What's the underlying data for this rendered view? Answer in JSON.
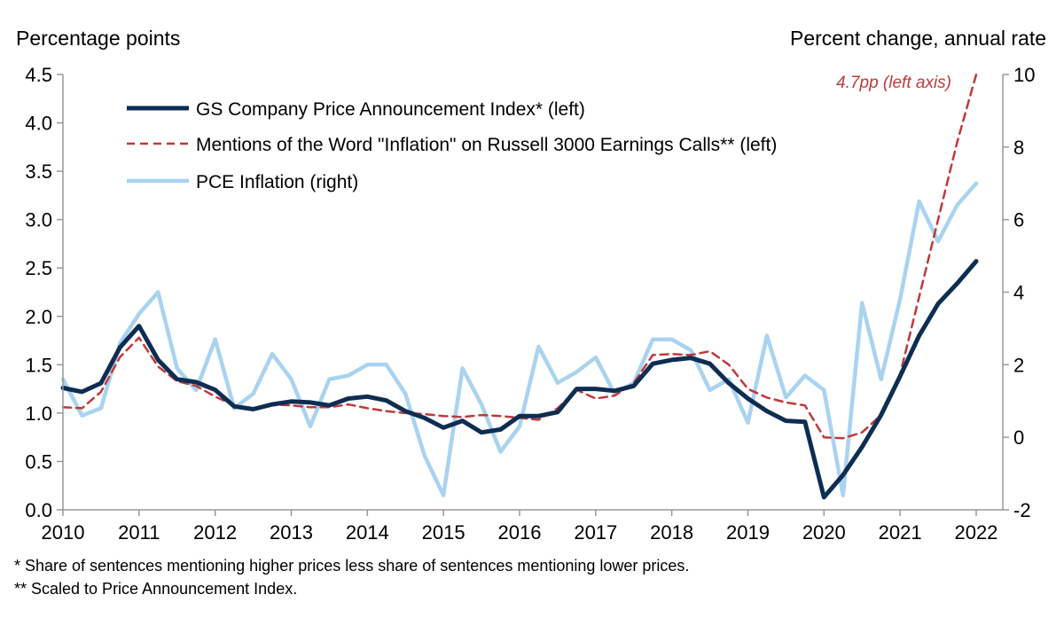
{
  "left_axis_title": "Percentage points",
  "right_axis_title": "Percent change, annual rate",
  "annotation": "4.7pp (left axis)",
  "footnotes": [
    "* Share of sentences mentioning higher prices less share of sentences mentioning lower prices.",
    "** Scaled to Price Announcement Index."
  ],
  "colors": {
    "gs": "#0e2d52",
    "mentions": "#c0393b",
    "pce": "#a9d3ef",
    "axis": "#999999"
  },
  "chart_data": {
    "type": "line",
    "x_ticks": [
      "2010",
      "2011",
      "2012",
      "2013",
      "2014",
      "2015",
      "2016",
      "2017",
      "2018",
      "2019",
      "2020",
      "2021",
      "2022"
    ],
    "xlim": [
      2010,
      2022.35
    ],
    "left_ylim": [
      0,
      4.5
    ],
    "left_yticks": [
      "0.0",
      "0.5",
      "1.0",
      "1.5",
      "2.0",
      "2.5",
      "3.0",
      "3.5",
      "4.0",
      "4.5"
    ],
    "right_ylim": [
      -2,
      10
    ],
    "right_yticks": [
      "-2",
      "0",
      "2",
      "4",
      "6",
      "8",
      "10"
    ],
    "grid": false,
    "legend_position": "top-left",
    "series": [
      {
        "name": "GS Company Price Announcement Index* (left)",
        "axis": "left",
        "style": "solid",
        "x": [
          2010,
          2010.25,
          2010.5,
          2010.75,
          2011,
          2011.25,
          2011.5,
          2011.75,
          2012,
          2012.25,
          2012.5,
          2012.75,
          2013,
          2013.25,
          2013.5,
          2013.75,
          2014,
          2014.25,
          2014.5,
          2014.75,
          2015,
          2015.25,
          2015.5,
          2015.75,
          2016,
          2016.25,
          2016.5,
          2016.75,
          2017,
          2017.25,
          2017.5,
          2017.75,
          2018,
          2018.25,
          2018.5,
          2018.75,
          2019,
          2019.25,
          2019.5,
          2019.75,
          2020,
          2020.25,
          2020.5,
          2020.75,
          2021,
          2021.25,
          2021.5,
          2021.75,
          2022
        ],
        "y": [
          1.26,
          1.22,
          1.31,
          1.68,
          1.9,
          1.55,
          1.35,
          1.32,
          1.24,
          1.07,
          1.04,
          1.09,
          1.12,
          1.11,
          1.08,
          1.15,
          1.17,
          1.13,
          1.02,
          0.95,
          0.85,
          0.92,
          0.8,
          0.83,
          0.97,
          0.97,
          1.01,
          1.25,
          1.25,
          1.23,
          1.28,
          1.51,
          1.55,
          1.57,
          1.51,
          1.31,
          1.15,
          1.02,
          0.92,
          0.91,
          0.13,
          0.36,
          0.65,
          0.98,
          1.38,
          1.8,
          2.13,
          2.34,
          2.57
        ]
      },
      {
        "name": "Mentions of the Word \"Inflation\" on Russell 3000 Earnings Calls** (left)",
        "axis": "left",
        "style": "dashed",
        "x": [
          2010,
          2010.25,
          2010.5,
          2010.75,
          2011,
          2011.25,
          2011.5,
          2011.75,
          2012,
          2012.25,
          2012.5,
          2012.75,
          2013,
          2013.25,
          2013.5,
          2013.75,
          2014,
          2014.25,
          2014.5,
          2014.75,
          2015,
          2015.25,
          2015.5,
          2015.75,
          2016,
          2016.25,
          2016.5,
          2016.75,
          2017,
          2017.25,
          2017.5,
          2017.75,
          2018,
          2018.25,
          2018.5,
          2018.75,
          2019,
          2019.25,
          2019.5,
          2019.75,
          2020,
          2020.25,
          2020.5,
          2020.75,
          2021,
          2021.25,
          2021.5,
          2021.75,
          2022
        ],
        "y": [
          1.06,
          1.05,
          1.22,
          1.58,
          1.78,
          1.48,
          1.33,
          1.28,
          1.17,
          1.08,
          1.05,
          1.09,
          1.08,
          1.06,
          1.06,
          1.09,
          1.05,
          1.02,
          1.0,
          0.99,
          0.97,
          0.96,
          0.98,
          0.97,
          0.95,
          0.93,
          1.05,
          1.24,
          1.15,
          1.18,
          1.31,
          1.6,
          1.61,
          1.6,
          1.64,
          1.5,
          1.25,
          1.16,
          1.11,
          1.08,
          0.75,
          0.74,
          0.8,
          0.98,
          1.4,
          2.2,
          3.0,
          3.8,
          4.5
        ]
      },
      {
        "name": "PCE Inflation (right)",
        "axis": "right",
        "style": "solid",
        "x": [
          2010,
          2010.25,
          2010.5,
          2010.75,
          2011,
          2011.25,
          2011.5,
          2011.75,
          2012,
          2012.25,
          2012.5,
          2012.75,
          2013,
          2013.25,
          2013.5,
          2013.75,
          2014,
          2014.25,
          2014.5,
          2014.75,
          2015,
          2015.25,
          2015.5,
          2015.75,
          2016,
          2016.25,
          2016.5,
          2016.75,
          2017,
          2017.25,
          2017.5,
          2017.75,
          2018,
          2018.25,
          2018.5,
          2018.75,
          2019,
          2019.25,
          2019.5,
          2019.75,
          2020,
          2020.25,
          2020.5,
          2020.75,
          2021,
          2021.25,
          2021.5,
          2021.75,
          2022
        ],
        "y": [
          1.6,
          0.6,
          0.8,
          2.6,
          3.4,
          4.0,
          1.9,
          1.3,
          2.7,
          0.8,
          1.2,
          2.3,
          1.6,
          0.3,
          1.6,
          1.7,
          2.0,
          2.0,
          1.2,
          -0.5,
          -1.6,
          1.9,
          0.9,
          -0.4,
          0.3,
          2.5,
          1.5,
          1.8,
          2.2,
          1.2,
          1.5,
          2.7,
          2.7,
          2.4,
          1.3,
          1.6,
          0.4,
          2.8,
          1.1,
          1.7,
          1.3,
          -1.6,
          3.7,
          1.6,
          3.8,
          6.5,
          5.4,
          6.4,
          7.0
        ]
      }
    ]
  }
}
